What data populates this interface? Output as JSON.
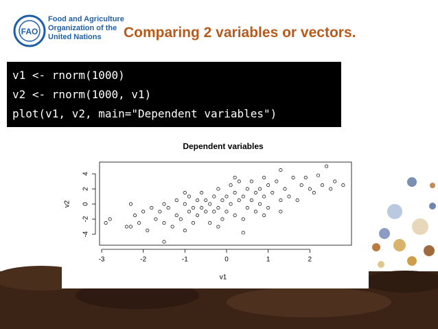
{
  "header": {
    "logo_text": [
      "Food and Agriculture",
      "Organization of the",
      "United Nations"
    ],
    "title": "Comparing 2 variables or vectors."
  },
  "code": [
    "v1 <- rnorm(1000)",
    "v2 <- rnorm(1000, v1)",
    "plot(v1, v2, main=\"Dependent variables\")"
  ],
  "chart_data": {
    "type": "scatter",
    "title": "Dependent variables",
    "x_label": "v1",
    "y_label": "v2",
    "color": "#000000",
    "x": [
      -2.9,
      -2.8,
      -2.4,
      -2.3,
      -2.2,
      -2.1,
      -2.0,
      -1.9,
      -1.8,
      -1.7,
      -1.6,
      -1.5,
      -1.5,
      -1.4,
      -1.3,
      -1.2,
      -1.2,
      -1.1,
      -1.0,
      -1.0,
      -0.9,
      -0.9,
      -0.8,
      -0.8,
      -0.7,
      -0.7,
      -0.6,
      -0.6,
      -0.5,
      -0.5,
      -0.4,
      -0.4,
      -0.3,
      -0.3,
      -0.2,
      -0.2,
      -0.1,
      -0.1,
      0.0,
      0.0,
      0.1,
      0.1,
      0.2,
      0.2,
      0.3,
      0.3,
      0.4,
      0.4,
      0.5,
      0.5,
      0.6,
      0.6,
      0.7,
      0.7,
      0.8,
      0.8,
      0.9,
      0.9,
      1.0,
      1.0,
      1.1,
      1.2,
      1.3,
      1.3,
      1.4,
      1.5,
      1.6,
      1.7,
      1.8,
      1.9,
      2.0,
      2.1,
      2.2,
      2.3,
      2.4,
      2.5,
      2.6,
      2.8,
      -1.5,
      0.4,
      -0.2,
      0.9,
      1.3,
      -2.3,
      -1.0,
      0.2
    ],
    "y": [
      -2.5,
      -2.0,
      -3.0,
      0.0,
      -1.5,
      -2.5,
      -1.0,
      -3.5,
      -0.5,
      -2.0,
      -1.0,
      -5.0,
      -2.5,
      -0.5,
      -3.0,
      -1.5,
      0.5,
      -2.0,
      0.0,
      -3.5,
      -1.0,
      1.0,
      -0.5,
      -2.5,
      0.5,
      -1.5,
      -0.5,
      1.5,
      -1.0,
      0.5,
      -2.5,
      0.0,
      1.0,
      -1.0,
      2.0,
      -0.5,
      0.5,
      -2.0,
      1.0,
      -1.0,
      2.5,
      0.0,
      -1.5,
      1.5,
      0.5,
      3.0,
      -3.8,
      1.0,
      2.0,
      -0.5,
      0.5,
      3.0,
      1.5,
      -1.0,
      2.0,
      0.0,
      1.0,
      3.5,
      2.5,
      -0.5,
      1.5,
      3.0,
      0.5,
      4.5,
      2.0,
      1.0,
      3.5,
      0.5,
      2.5,
      3.5,
      2.0,
      1.5,
      3.8,
      2.5,
      5.0,
      2.0,
      3.0,
      2.5,
      0.0,
      -2.0,
      -3.0,
      -1.5,
      -1.0,
      -3.0,
      1.5,
      3.5
    ],
    "xlim": [
      -3.05,
      3.0
    ],
    "ylim": [
      -5.45,
      5.55
    ],
    "xticks": [
      -3,
      -2,
      -1,
      0,
      1,
      2
    ],
    "yticks": [
      -4,
      -2,
      0,
      2,
      4
    ]
  }
}
